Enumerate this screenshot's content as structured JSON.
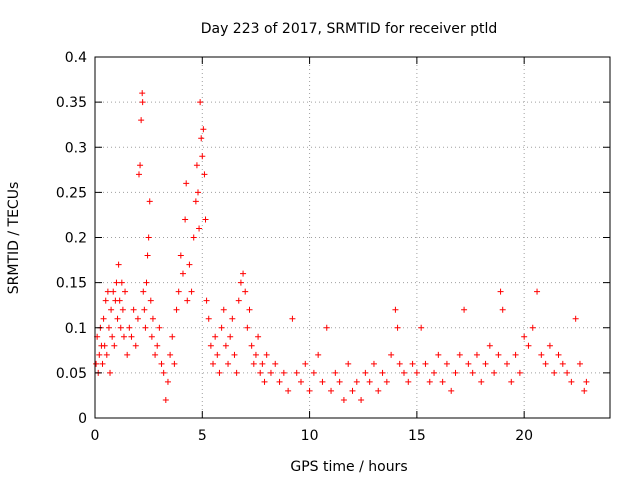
{
  "chart_data": {
    "type": "scatter",
    "title": "Day 223 of 2017, SRMTID for receiver ptld",
    "xlabel": "GPS time / hours",
    "ylabel": "SRMTID / TECUs",
    "xlim": [
      0,
      24
    ],
    "ylim": [
      0,
      0.4
    ],
    "xticks": [
      0,
      5,
      10,
      15,
      20
    ],
    "yticks": [
      0,
      0.05,
      0.1,
      0.15,
      0.2,
      0.25,
      0.3,
      0.35,
      0.4
    ],
    "xtick_labels": [
      "0",
      "5",
      "10",
      "15",
      "20"
    ],
    "ytick_labels": [
      "0",
      "0.05",
      "0.1",
      "0.15",
      "0.2",
      "0.25",
      "0.3",
      "0.35",
      "0.4"
    ],
    "grid": true,
    "marker": "+",
    "color": "#ff0000",
    "series": [
      {
        "name": "SRMTID",
        "points": [
          [
            0.05,
            0.06
          ],
          [
            0.1,
            0.09
          ],
          [
            0.15,
            0.05
          ],
          [
            0.2,
            0.07
          ],
          [
            0.25,
            0.1
          ],
          [
            0.3,
            0.08
          ],
          [
            0.35,
            0.06
          ],
          [
            0.4,
            0.11
          ],
          [
            0.45,
            0.08
          ],
          [
            0.5,
            0.13
          ],
          [
            0.55,
            0.07
          ],
          [
            0.6,
            0.14
          ],
          [
            0.65,
            0.1
          ],
          [
            0.7,
            0.05
          ],
          [
            0.75,
            0.12
          ],
          [
            0.8,
            0.09
          ],
          [
            0.85,
            0.14
          ],
          [
            0.9,
            0.08
          ],
          [
            0.95,
            0.13
          ],
          [
            1.0,
            0.15
          ],
          [
            1.05,
            0.11
          ],
          [
            1.1,
            0.17
          ],
          [
            1.15,
            0.13
          ],
          [
            1.2,
            0.1
          ],
          [
            1.25,
            0.15
          ],
          [
            1.3,
            0.12
          ],
          [
            1.35,
            0.09
          ],
          [
            1.4,
            0.14
          ],
          [
            1.5,
            0.07
          ],
          [
            1.6,
            0.1
          ],
          [
            1.7,
            0.09
          ],
          [
            1.8,
            0.12
          ],
          [
            1.9,
            0.08
          ],
          [
            2.0,
            0.11
          ],
          [
            2.05,
            0.27
          ],
          [
            2.1,
            0.28
          ],
          [
            2.15,
            0.33
          ],
          [
            2.2,
            0.36
          ],
          [
            2.22,
            0.35
          ],
          [
            2.25,
            0.14
          ],
          [
            2.3,
            0.12
          ],
          [
            2.35,
            0.1
          ],
          [
            2.4,
            0.15
          ],
          [
            2.45,
            0.18
          ],
          [
            2.5,
            0.2
          ],
          [
            2.55,
            0.24
          ],
          [
            2.6,
            0.13
          ],
          [
            2.65,
            0.09
          ],
          [
            2.7,
            0.11
          ],
          [
            2.8,
            0.07
          ],
          [
            2.9,
            0.08
          ],
          [
            3.0,
            0.1
          ],
          [
            3.1,
            0.06
          ],
          [
            3.2,
            0.05
          ],
          [
            3.3,
            0.02
          ],
          [
            3.4,
            0.04
          ],
          [
            3.5,
            0.07
          ],
          [
            3.6,
            0.09
          ],
          [
            3.7,
            0.06
          ],
          [
            3.8,
            0.12
          ],
          [
            3.9,
            0.14
          ],
          [
            4.0,
            0.18
          ],
          [
            4.1,
            0.16
          ],
          [
            4.2,
            0.22
          ],
          [
            4.25,
            0.26
          ],
          [
            4.3,
            0.13
          ],
          [
            4.4,
            0.17
          ],
          [
            4.5,
            0.14
          ],
          [
            4.6,
            0.2
          ],
          [
            4.7,
            0.24
          ],
          [
            4.75,
            0.28
          ],
          [
            4.8,
            0.25
          ],
          [
            4.85,
            0.21
          ],
          [
            4.9,
            0.35
          ],
          [
            4.95,
            0.31
          ],
          [
            5.0,
            0.29
          ],
          [
            5.05,
            0.32
          ],
          [
            5.1,
            0.27
          ],
          [
            5.15,
            0.22
          ],
          [
            5.2,
            0.13
          ],
          [
            5.3,
            0.11
          ],
          [
            5.4,
            0.08
          ],
          [
            5.5,
            0.06
          ],
          [
            5.6,
            0.09
          ],
          [
            5.7,
            0.07
          ],
          [
            5.8,
            0.05
          ],
          [
            5.9,
            0.1
          ],
          [
            6.0,
            0.12
          ],
          [
            6.1,
            0.08
          ],
          [
            6.2,
            0.06
          ],
          [
            6.3,
            0.09
          ],
          [
            6.4,
            0.11
          ],
          [
            6.5,
            0.07
          ],
          [
            6.6,
            0.05
          ],
          [
            6.7,
            0.13
          ],
          [
            6.8,
            0.15
          ],
          [
            6.9,
            0.16
          ],
          [
            7.0,
            0.14
          ],
          [
            7.1,
            0.1
          ],
          [
            7.2,
            0.12
          ],
          [
            7.3,
            0.08
          ],
          [
            7.4,
            0.06
          ],
          [
            7.5,
            0.07
          ],
          [
            7.6,
            0.09
          ],
          [
            7.7,
            0.05
          ],
          [
            7.8,
            0.06
          ],
          [
            7.9,
            0.04
          ],
          [
            8.0,
            0.07
          ],
          [
            8.2,
            0.05
          ],
          [
            8.4,
            0.06
          ],
          [
            8.6,
            0.04
          ],
          [
            8.8,
            0.05
          ],
          [
            9.0,
            0.03
          ],
          [
            9.2,
            0.11
          ],
          [
            9.4,
            0.05
          ],
          [
            9.6,
            0.04
          ],
          [
            9.8,
            0.06
          ],
          [
            10.0,
            0.03
          ],
          [
            10.2,
            0.05
          ],
          [
            10.4,
            0.07
          ],
          [
            10.6,
            0.04
          ],
          [
            10.8,
            0.1
          ],
          [
            11.0,
            0.03
          ],
          [
            11.2,
            0.05
          ],
          [
            11.4,
            0.04
          ],
          [
            11.6,
            0.02
          ],
          [
            11.8,
            0.06
          ],
          [
            12.0,
            0.03
          ],
          [
            12.2,
            0.04
          ],
          [
            12.4,
            0.02
          ],
          [
            12.6,
            0.05
          ],
          [
            12.8,
            0.04
          ],
          [
            13.0,
            0.06
          ],
          [
            13.2,
            0.03
          ],
          [
            13.4,
            0.05
          ],
          [
            13.6,
            0.04
          ],
          [
            13.8,
            0.07
          ],
          [
            14.0,
            0.12
          ],
          [
            14.1,
            0.1
          ],
          [
            14.2,
            0.06
          ],
          [
            14.4,
            0.05
          ],
          [
            14.6,
            0.04
          ],
          [
            14.8,
            0.06
          ],
          [
            15.0,
            0.05
          ],
          [
            15.2,
            0.1
          ],
          [
            15.4,
            0.06
          ],
          [
            15.6,
            0.04
          ],
          [
            15.8,
            0.05
          ],
          [
            16.0,
            0.07
          ],
          [
            16.2,
            0.04
          ],
          [
            16.4,
            0.06
          ],
          [
            16.6,
            0.03
          ],
          [
            16.8,
            0.05
          ],
          [
            17.0,
            0.07
          ],
          [
            17.2,
            0.12
          ],
          [
            17.4,
            0.06
          ],
          [
            17.6,
            0.05
          ],
          [
            17.8,
            0.07
          ],
          [
            18.0,
            0.04
          ],
          [
            18.2,
            0.06
          ],
          [
            18.4,
            0.08
          ],
          [
            18.6,
            0.05
          ],
          [
            18.8,
            0.07
          ],
          [
            18.9,
            0.14
          ],
          [
            19.0,
            0.12
          ],
          [
            19.2,
            0.06
          ],
          [
            19.4,
            0.04
          ],
          [
            19.6,
            0.07
          ],
          [
            19.8,
            0.05
          ],
          [
            20.0,
            0.09
          ],
          [
            20.2,
            0.08
          ],
          [
            20.4,
            0.1
          ],
          [
            20.6,
            0.14
          ],
          [
            20.8,
            0.07
          ],
          [
            21.0,
            0.06
          ],
          [
            21.2,
            0.08
          ],
          [
            21.4,
            0.05
          ],
          [
            21.6,
            0.07
          ],
          [
            21.8,
            0.06
          ],
          [
            22.0,
            0.05
          ],
          [
            22.2,
            0.04
          ],
          [
            22.4,
            0.11
          ],
          [
            22.6,
            0.06
          ],
          [
            22.8,
            0.03
          ],
          [
            22.9,
            0.04
          ]
        ]
      }
    ]
  }
}
